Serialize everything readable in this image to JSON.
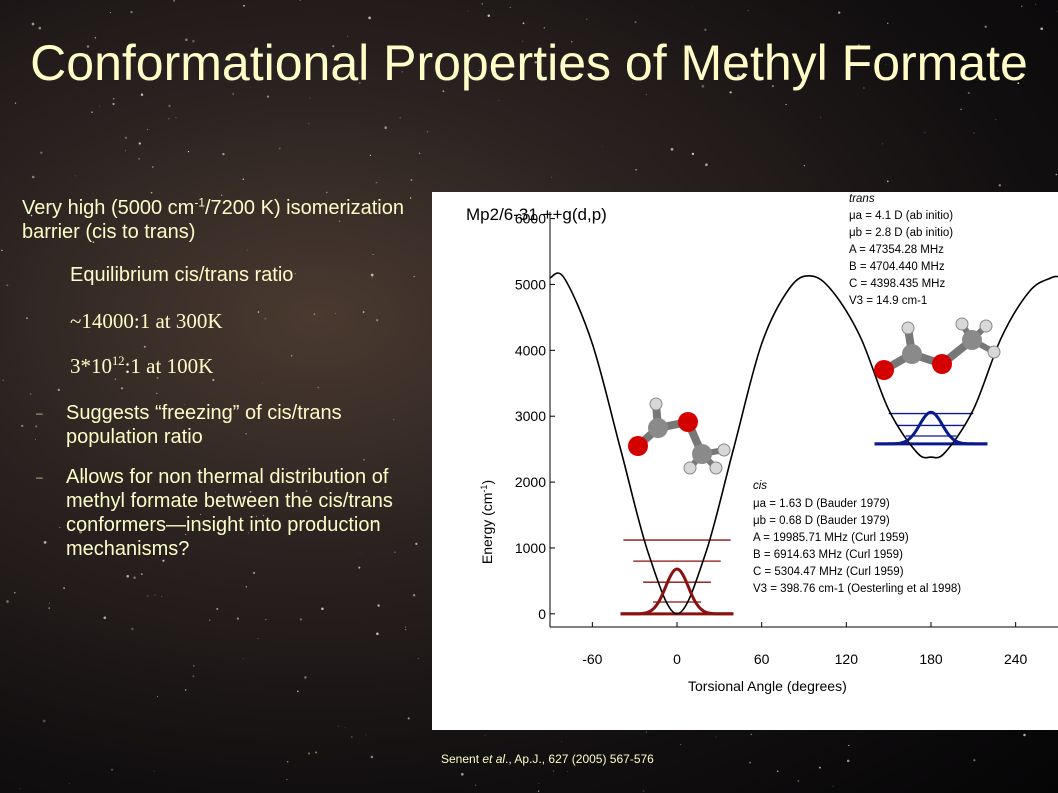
{
  "slide": {
    "title": "Conformational Properties of Methyl Formate"
  },
  "bullets": {
    "barrier_line_pre": "Very high (5000 cm",
    "barrier_sup": "-1",
    "barrier_line_post": "/7200 K) isomerization barrier (cis to trans)",
    "equilibrium_label": "Equilibrium cis/trans ratio",
    "ratio_300K": "~14000:1 at 300K",
    "ratio_100K_pre": "3*10",
    "ratio_100K_sup": "12",
    "ratio_100K_post": ":1 at 100K",
    "freezing_dash": "–",
    "freezing": "Suggests “freezing” of cis/trans population ratio",
    "nonthermal_dash": "–",
    "nonthermal": "Allows for non thermal distribution of methyl formate between the cis/trans conformers—insight into production mechanisms?"
  },
  "citation": {
    "pre": "Senent ",
    "etal": "et al",
    "journal": "., Ap.J.",
    "post": ", 627 (2005) 567-576"
  },
  "chart_data": {
    "type": "line",
    "method_label": "Mp2/6-31 ++g(d,p)",
    "xlabel": "Torsional Angle (degrees)",
    "ylabel": "Energy (cm-1)",
    "ylabel_main": "Energy (cm",
    "ylabel_sup": "-1",
    "ylabel_close": ")",
    "xlim": [
      -90,
      270
    ],
    "ylim": [
      -200,
      6100
    ],
    "x_ticks": [
      -60,
      0,
      60,
      120,
      180,
      240
    ],
    "y_ticks": [
      0,
      1000,
      2000,
      3000,
      4000,
      5000,
      6000
    ],
    "x_tick_labels": [
      "-60",
      "0",
      "60",
      "120",
      "180",
      "240"
    ],
    "y_tick_labels": [
      "0",
      "1000",
      "2000",
      "3000",
      "4000",
      "5000",
      "6000"
    ],
    "series": [
      {
        "x": [
          -90,
          -80,
          -60,
          -40,
          -20,
          0,
          20,
          40,
          60,
          80,
          95,
          110,
          130,
          150,
          170,
          180,
          190,
          210,
          230,
          250,
          265,
          270
        ],
        "values": [
          5100,
          5100,
          4100,
          2500,
          900,
          0,
          900,
          2500,
          4100,
          4950,
          5130,
          4900,
          4200,
          3100,
          2450,
          2380,
          2450,
          3100,
          4200,
          4900,
          5100,
          5120
        ],
        "color": "#000000"
      }
    ],
    "cis_levels": [
      0,
      180,
      480,
      800,
      1120
    ],
    "trans_levels": [
      2580,
      2700,
      2860,
      3040
    ],
    "cis_color": "#8b1111",
    "trans_color": "#0a1a8e",
    "trans_box": {
      "title": "trans",
      "mu_a": "μa = 4.1 D (ab initio)",
      "mu_b": "μb = 2.8 D (ab initio)",
      "A": "A = 47354.28 MHz",
      "B": "B = 4704.440 MHz",
      "C": "C = 4398.435 MHz",
      "V3": "V3 = 14.9 cm-1"
    },
    "cis_box": {
      "title": "cis",
      "mu_a": "μa = 1.63 D (Bauder 1979)",
      "mu_b": "μb = 0.68 D (Bauder 1979)",
      "A": "A = 19985.71 MHz (Curl 1959)",
      "B": "B = 6914.63 MHz (Curl 1959)",
      "C": "C = 5304.47 MHz (Curl 1959)",
      "V3": "V3 = 398.76 cm-1 (Oesterling et al 1998)"
    }
  }
}
